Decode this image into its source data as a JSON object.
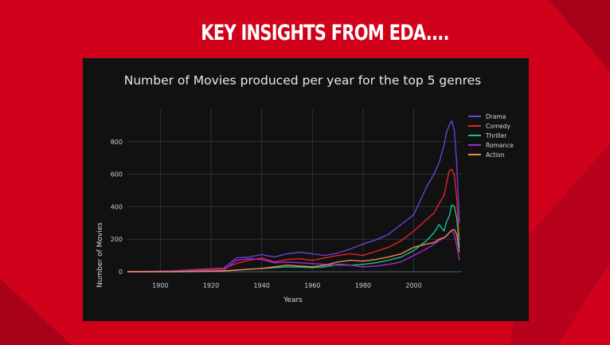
{
  "slide": {
    "title": "KEY INSIGHTS FROM  EDA....",
    "colors": {
      "background": "#d0021b",
      "dark_band": "#a8011a",
      "panel": "#111111"
    }
  },
  "chart_data": {
    "type": "line",
    "title": "Number of Movies produced per year for the top 5 genres",
    "xlabel": "Years",
    "ylabel": "Number of Movies",
    "xlim": [
      1887,
      2019
    ],
    "ylim": [
      0,
      1000
    ],
    "xticks": [
      1900,
      1920,
      1940,
      1960,
      1980,
      2000
    ],
    "yticks": [
      0,
      200,
      400,
      600,
      800
    ],
    "grid": true,
    "legend_position": "top-right",
    "x": [
      1887,
      1895,
      1905,
      1910,
      1915,
      1920,
      1925,
      1930,
      1935,
      1940,
      1945,
      1950,
      1955,
      1960,
      1965,
      1970,
      1975,
      1980,
      1985,
      1990,
      1995,
      2000,
      2005,
      2008,
      2010,
      2012,
      2013,
      2014,
      2015,
      2016,
      2017,
      2018
    ],
    "series": [
      {
        "name": "Drama",
        "color": "#6a3fd6",
        "values": [
          0,
          2,
          5,
          10,
          15,
          18,
          22,
          85,
          90,
          105,
          90,
          110,
          120,
          110,
          100,
          115,
          140,
          170,
          195,
          230,
          290,
          350,
          520,
          600,
          670,
          780,
          860,
          900,
          930,
          870,
          660,
          300
        ]
      },
      {
        "name": "Comedy",
        "color": "#e0232a",
        "values": [
          0,
          1,
          3,
          5,
          10,
          15,
          20,
          50,
          70,
          85,
          60,
          75,
          80,
          70,
          85,
          100,
          110,
          100,
          125,
          150,
          190,
          250,
          320,
          360,
          420,
          470,
          550,
          620,
          630,
          600,
          450,
          200
        ]
      },
      {
        "name": "Thriller",
        "color": "#12c38a",
        "values": [
          0,
          0,
          0,
          0,
          1,
          2,
          5,
          10,
          15,
          20,
          25,
          30,
          28,
          25,
          30,
          45,
          40,
          45,
          55,
          70,
          90,
          130,
          190,
          240,
          290,
          250,
          310,
          340,
          410,
          400,
          330,
          150
        ]
      },
      {
        "name": "Romance",
        "color": "#a12bd6",
        "values": [
          0,
          0,
          2,
          3,
          5,
          8,
          10,
          70,
          80,
          75,
          55,
          60,
          55,
          50,
          45,
          40,
          40,
          30,
          35,
          45,
          60,
          100,
          140,
          170,
          190,
          210,
          225,
          240,
          250,
          230,
          160,
          70
        ]
      },
      {
        "name": "Action",
        "color": "#f0874b",
        "values": [
          0,
          0,
          0,
          1,
          2,
          3,
          5,
          10,
          15,
          20,
          30,
          40,
          35,
          30,
          40,
          60,
          70,
          65,
          75,
          90,
          110,
          150,
          170,
          180,
          200,
          210,
          220,
          240,
          255,
          260,
          230,
          120
        ]
      }
    ]
  }
}
